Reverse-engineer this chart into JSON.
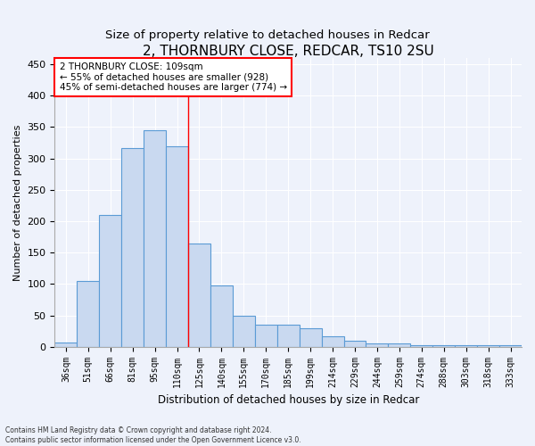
{
  "title": "2, THORNBURY CLOSE, REDCAR, TS10 2SU",
  "subtitle": "Size of property relative to detached houses in Redcar",
  "xlabel": "Distribution of detached houses by size in Redcar",
  "ylabel": "Number of detached properties",
  "categories": [
    "36sqm",
    "51sqm",
    "66sqm",
    "81sqm",
    "95sqm",
    "110sqm",
    "125sqm",
    "140sqm",
    "155sqm",
    "170sqm",
    "185sqm",
    "199sqm",
    "214sqm",
    "229sqm",
    "244sqm",
    "259sqm",
    "274sqm",
    "288sqm",
    "303sqm",
    "318sqm",
    "333sqm"
  ],
  "values": [
    7,
    105,
    210,
    316,
    345,
    320,
    165,
    97,
    50,
    35,
    35,
    30,
    17,
    10,
    5,
    5,
    2,
    2,
    2,
    3,
    3
  ],
  "bar_color": "#c9d9f0",
  "bar_edge_color": "#5b9bd5",
  "bar_edge_width": 0.8,
  "red_line_index": 5,
  "annotation_text": "2 THORNBURY CLOSE: 109sqm\n← 55% of detached houses are smaller (928)\n45% of semi-detached houses are larger (774) →",
  "annotation_box_color": "white",
  "annotation_box_edge": "red",
  "ylim": [
    0,
    460
  ],
  "yticks": [
    0,
    50,
    100,
    150,
    200,
    250,
    300,
    350,
    400,
    450
  ],
  "footer_line1": "Contains HM Land Registry data © Crown copyright and database right 2024.",
  "footer_line2": "Contains public sector information licensed under the Open Government Licence v3.0.",
  "bg_color": "#eef2fb",
  "grid_color": "#ffffff",
  "title_fontsize": 11,
  "tick_fontsize": 7,
  "ylabel_fontsize": 8,
  "xlabel_fontsize": 8.5,
  "annotation_fontsize": 7.5
}
